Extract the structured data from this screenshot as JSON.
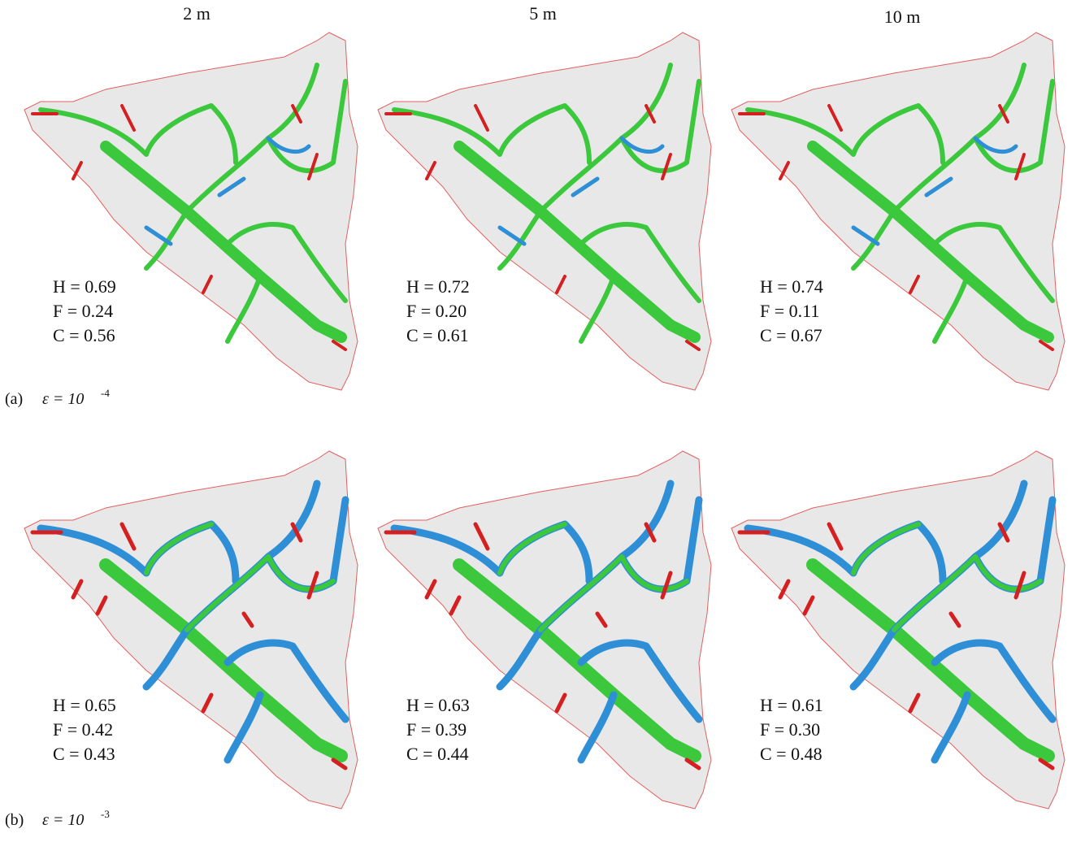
{
  "column_headers": [
    "2 m",
    "5 m",
    "10 m"
  ],
  "rows": [
    {
      "label": "(a)",
      "epsilon": "ε = 10",
      "exponent": "-4",
      "panels": [
        {
          "stats": [
            "H = 0.69",
            "F = 0.24",
            "C = 0.56"
          ]
        },
        {
          "stats": [
            "H = 0.72",
            "F = 0.20",
            "C = 0.61"
          ]
        },
        {
          "stats": [
            "H = 0.74",
            "F = 0.11",
            "C = 0.67"
          ]
        }
      ]
    },
    {
      "label": "(b)",
      "epsilon": "ε = 10",
      "exponent": "-3",
      "panels": [
        {
          "stats": [
            "H = 0.65",
            "F = 0.42",
            "C = 0.43"
          ]
        },
        {
          "stats": [
            "H = 0.63",
            "F = 0.39",
            "C = 0.44"
          ]
        },
        {
          "stats": [
            "H = 0.61",
            "F = 0.30",
            "C = 0.48"
          ]
        }
      ]
    }
  ]
}
